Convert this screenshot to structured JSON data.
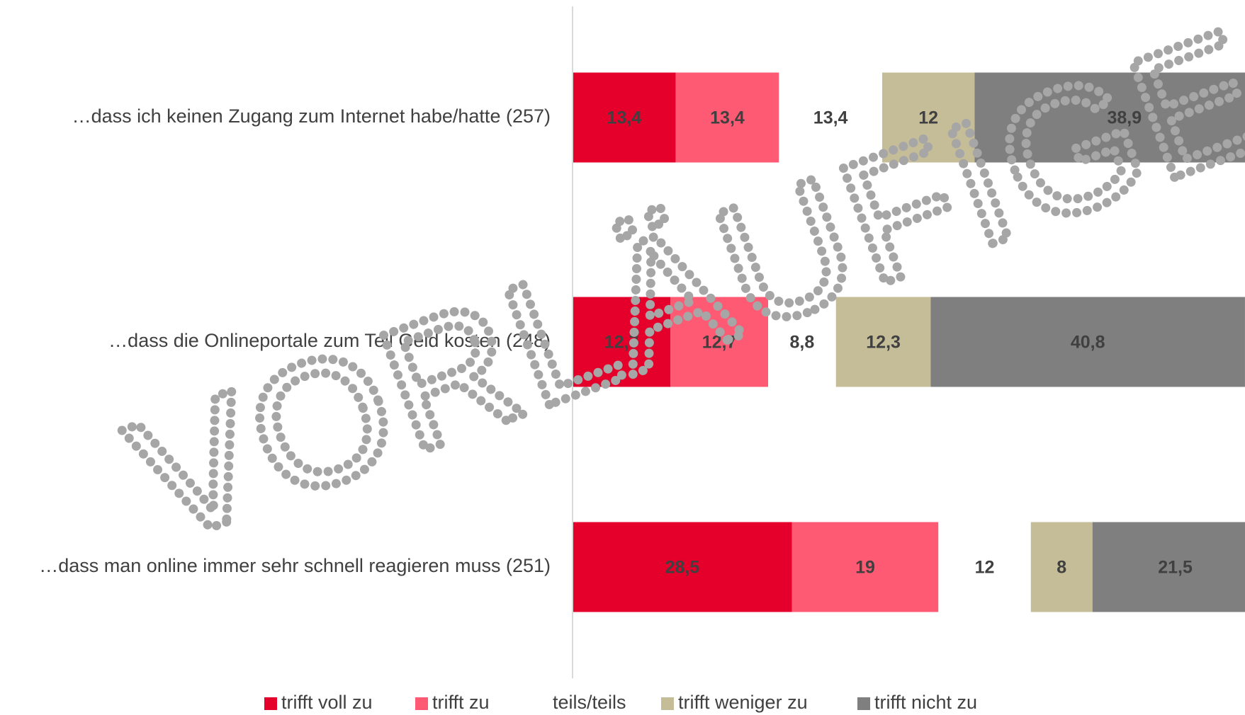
{
  "chart_data": {
    "type": "stacked_bar_horizontal",
    "categories": [
      "…dass ich keinen Zugang zum Internet habe/hatte (257)",
      "…dass die Onlineportale zum Teil Geld kosten (248)",
      "…dass man online immer sehr schnell reagieren muss (251)"
    ],
    "series": [
      {
        "name": "trifft voll zu",
        "color": "#e4002b",
        "values": [
          13.4,
          12.7,
          28.5
        ],
        "value_labels": [
          "13,4",
          "12,7",
          "28,5"
        ]
      },
      {
        "name": "trifft zu",
        "color": "#ff5a73",
        "values": [
          13.4,
          12.7,
          19
        ],
        "value_labels": [
          "13,4",
          "12,7",
          "19"
        ]
      },
      {
        "name": "teils/teils",
        "color": "#ffffff",
        "values": [
          13.4,
          8.8,
          12
        ],
        "value_labels": [
          "13,4",
          "8,8",
          "12"
        ]
      },
      {
        "name": "trifft weniger zu",
        "color": "#c5bd97",
        "values": [
          12,
          12.3,
          8
        ],
        "value_labels": [
          "12",
          "12,3",
          "8"
        ]
      },
      {
        "name": "trifft nicht zu",
        "color": "#7f7f7f",
        "values": [
          38.9,
          40.8,
          21.5
        ],
        "value_labels": [
          "38,9",
          "40,8",
          "21,5"
        ]
      }
    ],
    "xlim": [
      0,
      100
    ],
    "watermark": "VORLÄUFIGE ERGEBNISSE"
  }
}
